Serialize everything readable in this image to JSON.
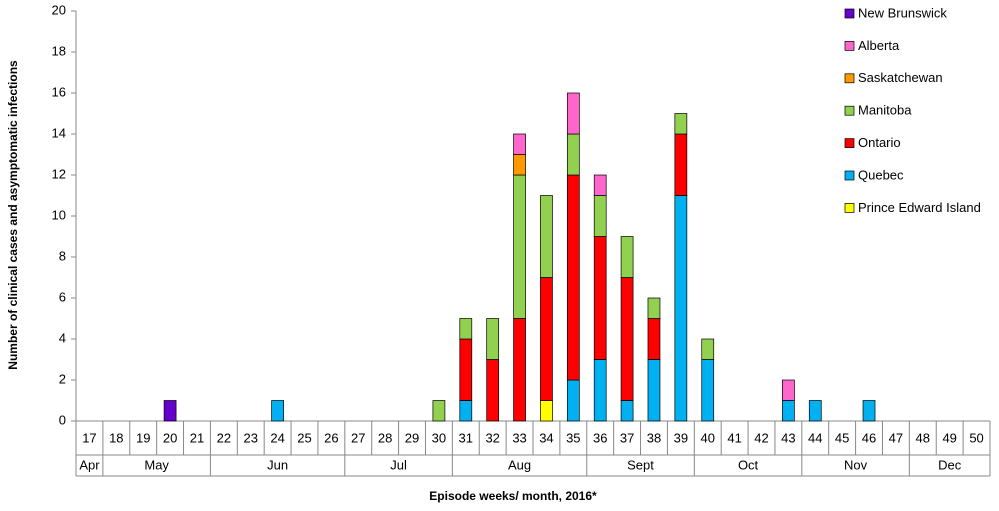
{
  "chart_data": {
    "type": "stacked-bar",
    "y_label": "Number of clinical cases and asymptomatic infections",
    "x_label": "Episode  weeks/ month, 2016*",
    "categories": [
      "17",
      "18",
      "19",
      "20",
      "21",
      "22",
      "23",
      "24",
      "25",
      "26",
      "27",
      "28",
      "29",
      "30",
      "31",
      "32",
      "33",
      "34",
      "35",
      "36",
      "37",
      "38",
      "39",
      "40",
      "41",
      "42",
      "43",
      "44",
      "45",
      "46",
      "47",
      "48",
      "49",
      "50"
    ],
    "month_groups": [
      {
        "label": "Apr",
        "weeks": 1
      },
      {
        "label": "May",
        "weeks": 4
      },
      {
        "label": "Jun",
        "weeks": 5
      },
      {
        "label": "Jul",
        "weeks": 4
      },
      {
        "label": "Aug",
        "weeks": 5
      },
      {
        "label": "Sept",
        "weeks": 4
      },
      {
        "label": "Oct",
        "weeks": 4
      },
      {
        "label": "Nov",
        "weeks": 4
      },
      {
        "label": "Dec",
        "weeks": 3
      }
    ],
    "ylim": [
      0,
      20
    ],
    "yticks": [
      0,
      2,
      4,
      6,
      8,
      10,
      12,
      14,
      16,
      18,
      20
    ],
    "legend": "top-right",
    "series": [
      {
        "name": "Prince Edward Island",
        "color": "#ffff00",
        "values": [
          0,
          0,
          0,
          0,
          0,
          0,
          0,
          0,
          0,
          0,
          0,
          0,
          0,
          0,
          0,
          0,
          0,
          1,
          0,
          0,
          0,
          0,
          0,
          0,
          0,
          0,
          0,
          0,
          0,
          0,
          0,
          0,
          0,
          0
        ]
      },
      {
        "name": "Quebec",
        "color": "#00b0f0",
        "values": [
          0,
          0,
          0,
          0,
          0,
          0,
          0,
          1,
          0,
          0,
          0,
          0,
          0,
          0,
          1,
          0,
          0,
          0,
          2,
          3,
          1,
          3,
          11,
          3,
          0,
          0,
          1,
          1,
          0,
          1,
          0,
          0,
          0,
          0
        ]
      },
      {
        "name": "Ontario",
        "color": "#ff0000",
        "values": [
          0,
          0,
          0,
          0,
          0,
          0,
          0,
          0,
          0,
          0,
          0,
          0,
          0,
          0,
          3,
          3,
          5,
          6,
          10,
          6,
          6,
          2,
          3,
          0,
          0,
          0,
          0,
          0,
          0,
          0,
          0,
          0,
          0,
          0
        ]
      },
      {
        "name": "Manitoba",
        "color": "#92d050",
        "values": [
          0,
          0,
          0,
          0,
          0,
          0,
          0,
          0,
          0,
          0,
          0,
          0,
          0,
          1,
          1,
          2,
          7,
          4,
          2,
          2,
          2,
          1,
          1,
          1,
          0,
          0,
          0,
          0,
          0,
          0,
          0,
          0,
          0,
          0
        ]
      },
      {
        "name": "Saskatchewan",
        "color": "#ff9900",
        "values": [
          0,
          0,
          0,
          0,
          0,
          0,
          0,
          0,
          0,
          0,
          0,
          0,
          0,
          0,
          0,
          0,
          1,
          0,
          0,
          0,
          0,
          0,
          0,
          0,
          0,
          0,
          0,
          0,
          0,
          0,
          0,
          0,
          0,
          0
        ]
      },
      {
        "name": "Alberta",
        "color": "#ff66cc",
        "values": [
          0,
          0,
          0,
          0,
          0,
          0,
          0,
          0,
          0,
          0,
          0,
          0,
          0,
          0,
          0,
          0,
          1,
          0,
          2,
          1,
          0,
          0,
          0,
          0,
          0,
          0,
          1,
          0,
          0,
          0,
          0,
          0,
          0,
          0
        ]
      },
      {
        "name": "New Brunswick",
        "color": "#6600cc",
        "values": [
          0,
          0,
          0,
          1,
          0,
          0,
          0,
          0,
          0,
          0,
          0,
          0,
          0,
          0,
          0,
          0,
          0,
          0,
          0,
          0,
          0,
          0,
          0,
          0,
          0,
          0,
          0,
          0,
          0,
          0,
          0,
          0,
          0,
          0
        ]
      }
    ]
  }
}
